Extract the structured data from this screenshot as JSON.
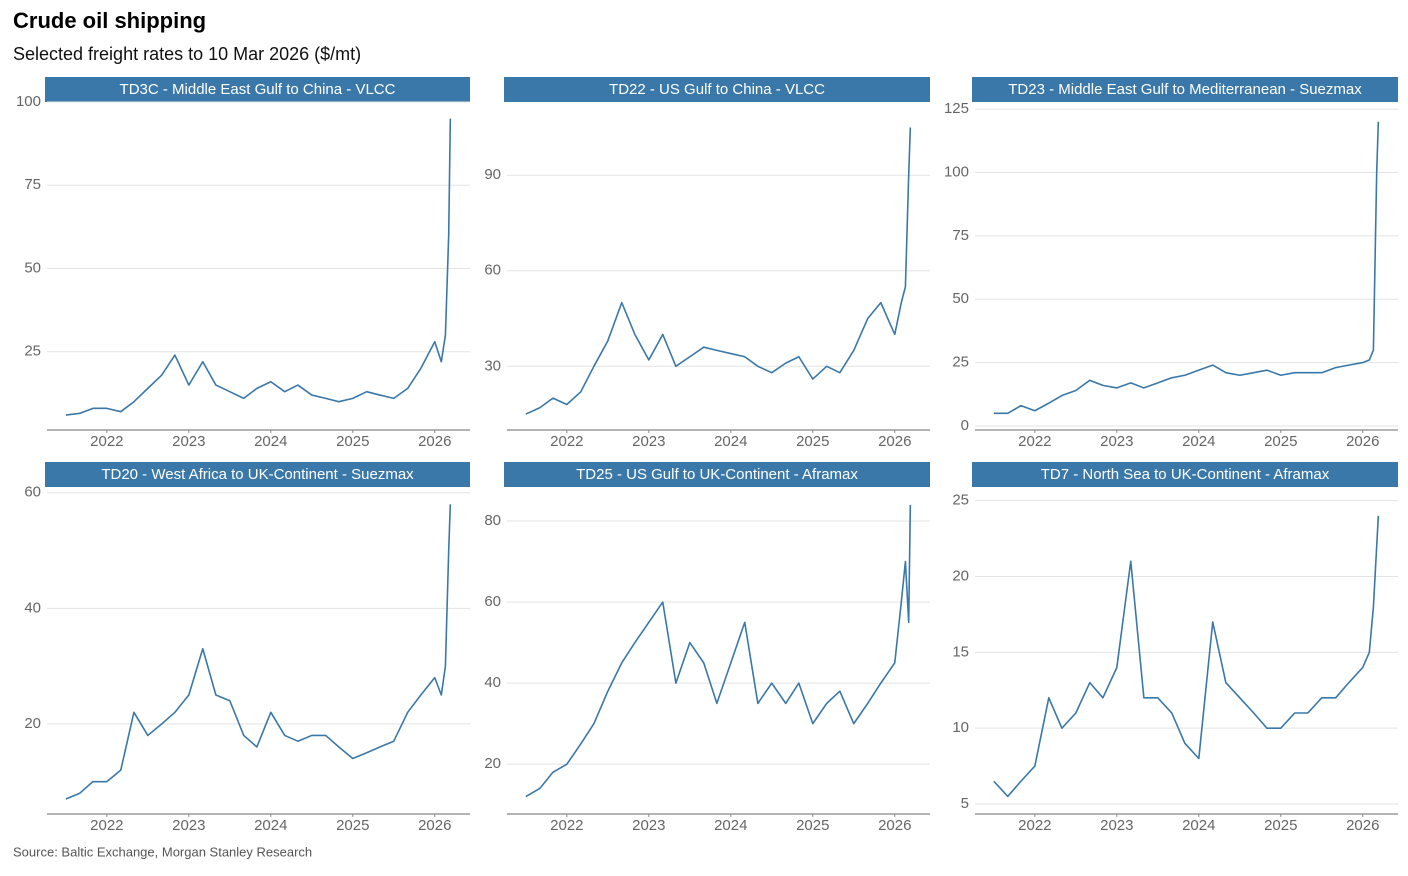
{
  "title": "Crude oil shipping",
  "subtitle": "Selected freight rates to 10 Mar 2026 ($/mt)",
  "source": "Source: Baltic Exchange, Morgan Stanley Research",
  "chart_data": [
    {
      "type": "line",
      "title": "TD3C - Middle East Gulf to China - VLCC",
      "color": "#3a78a9",
      "grid": true,
      "x": [
        2021.5,
        2021.67,
        2021.83,
        2022,
        2022.17,
        2022.33,
        2022.5,
        2022.67,
        2022.83,
        2023,
        2023.17,
        2023.33,
        2023.5,
        2023.67,
        2023.83,
        2024,
        2024.17,
        2024.33,
        2024.5,
        2024.67,
        2024.83,
        2025,
        2025.17,
        2025.33,
        2025.5,
        2025.67,
        2025.83,
        2026,
        2026.08,
        2026.13,
        2026.17,
        2026.19
      ],
      "values": [
        6,
        6.5,
        8,
        8,
        7,
        10,
        14,
        18,
        24,
        15,
        22,
        15,
        13,
        11,
        14,
        16,
        13,
        15,
        12,
        11,
        10,
        11,
        13,
        12,
        11,
        14,
        20,
        28,
        22,
        30,
        60,
        95
      ],
      "xlim": [
        2021.27,
        2026.43
      ],
      "xticks": [
        2022,
        2023,
        2024,
        2025,
        2026
      ],
      "ylim": [
        1.5,
        100
      ],
      "yticks": [
        25,
        50,
        75,
        100
      ]
    },
    {
      "type": "line",
      "title": "TD22 - US Gulf to China - VLCC",
      "color": "#3a78a9",
      "grid": true,
      "x": [
        2021.5,
        2021.67,
        2021.83,
        2022,
        2022.17,
        2022.33,
        2022.5,
        2022.67,
        2022.83,
        2023,
        2023.17,
        2023.33,
        2023.5,
        2023.67,
        2023.83,
        2024,
        2024.17,
        2024.33,
        2024.5,
        2024.67,
        2024.83,
        2025,
        2025.17,
        2025.33,
        2025.5,
        2025.67,
        2025.83,
        2026,
        2026.08,
        2026.13,
        2026.17,
        2026.19
      ],
      "values": [
        15,
        17,
        20,
        18,
        22,
        30,
        38,
        50,
        40,
        32,
        40,
        30,
        33,
        36,
        35,
        34,
        33,
        30,
        28,
        31,
        33,
        26,
        30,
        28,
        35,
        45,
        50,
        40,
        50,
        55,
        90,
        105
      ],
      "xlim": [
        2021.27,
        2026.43
      ],
      "xticks": [
        2022,
        2023,
        2024,
        2025,
        2026
      ],
      "ylim": [
        10,
        113
      ],
      "yticks": [
        30,
        60,
        90
      ]
    },
    {
      "type": "line",
      "title": "TD23 - Middle East Gulf to Mediterranean - Suezmax",
      "color": "#3a78a9",
      "grid": true,
      "x": [
        2021.5,
        2021.67,
        2021.83,
        2022,
        2022.17,
        2022.33,
        2022.5,
        2022.67,
        2022.83,
        2023,
        2023.17,
        2023.33,
        2023.5,
        2023.67,
        2023.83,
        2024,
        2024.17,
        2024.33,
        2024.5,
        2024.67,
        2024.83,
        2025,
        2025.17,
        2025.33,
        2025.5,
        2025.67,
        2025.83,
        2026,
        2026.08,
        2026.13,
        2026.17,
        2026.19
      ],
      "values": [
        5,
        5,
        8,
        6,
        9,
        12,
        14,
        18,
        16,
        15,
        17,
        15,
        17,
        19,
        20,
        22,
        24,
        21,
        20,
        21,
        22,
        20,
        21,
        21,
        21,
        23,
        24,
        25,
        26,
        30,
        100,
        120
      ],
      "xlim": [
        2021.27,
        2026.43
      ],
      "xticks": [
        2022,
        2023,
        2024,
        2025,
        2026
      ],
      "ylim": [
        -1.6,
        127.8
      ],
      "yticks": [
        0,
        25,
        50,
        75,
        100,
        125
      ]
    },
    {
      "type": "line",
      "title": "TD20 - West Africa to UK-Continent - Suezmax",
      "color": "#3a78a9",
      "grid": true,
      "x": [
        2021.5,
        2021.67,
        2021.83,
        2022,
        2022.17,
        2022.33,
        2022.5,
        2022.67,
        2022.83,
        2023,
        2023.17,
        2023.33,
        2023.5,
        2023.67,
        2023.83,
        2024,
        2024.17,
        2024.33,
        2024.5,
        2024.67,
        2024.83,
        2025,
        2025.17,
        2025.33,
        2025.5,
        2025.67,
        2025.83,
        2026,
        2026.08,
        2026.13,
        2026.17,
        2026.19
      ],
      "values": [
        7,
        8,
        10,
        10,
        12,
        22,
        18,
        20,
        22,
        25,
        33,
        25,
        24,
        18,
        16,
        22,
        18,
        17,
        18,
        18,
        16,
        14,
        15,
        16,
        17,
        22,
        25,
        28,
        25,
        30,
        50,
        58
      ],
      "xlim": [
        2021.27,
        2026.43
      ],
      "xticks": [
        2022,
        2023,
        2024,
        2025,
        2026
      ],
      "ylim": [
        4.4,
        61
      ],
      "yticks": [
        20,
        40,
        60
      ]
    },
    {
      "type": "line",
      "title": "TD25 - US Gulf to UK-Continent - Aframax",
      "color": "#3a78a9",
      "grid": true,
      "x": [
        2021.5,
        2021.67,
        2021.83,
        2022,
        2022.17,
        2022.33,
        2022.5,
        2022.67,
        2022.83,
        2023,
        2023.17,
        2023.33,
        2023.5,
        2023.67,
        2023.83,
        2024,
        2024.17,
        2024.33,
        2024.5,
        2024.67,
        2024.83,
        2025,
        2025.17,
        2025.33,
        2025.5,
        2025.67,
        2025.83,
        2026,
        2026.08,
        2026.13,
        2026.17,
        2026.19
      ],
      "values": [
        12,
        14,
        18,
        20,
        25,
        30,
        38,
        45,
        50,
        55,
        60,
        40,
        50,
        45,
        35,
        45,
        55,
        35,
        40,
        35,
        40,
        30,
        35,
        38,
        30,
        35,
        40,
        45,
        60,
        70,
        55,
        84
      ],
      "xlim": [
        2021.27,
        2026.43
      ],
      "xticks": [
        2022,
        2023,
        2024,
        2025,
        2026
      ],
      "ylim": [
        7.7,
        88.4
      ],
      "yticks": [
        20,
        40,
        60,
        80
      ]
    },
    {
      "type": "line",
      "title": "TD7 - North Sea to UK-Continent - Aframax",
      "color": "#3a78a9",
      "grid": true,
      "x": [
        2021.5,
        2021.67,
        2021.83,
        2022,
        2022.17,
        2022.33,
        2022.5,
        2022.67,
        2022.83,
        2023,
        2023.17,
        2023.33,
        2023.5,
        2023.67,
        2023.83,
        2024,
        2024.17,
        2024.33,
        2024.5,
        2024.67,
        2024.83,
        2025,
        2025.17,
        2025.33,
        2025.5,
        2025.67,
        2025.83,
        2026,
        2026.08,
        2026.13,
        2026.17,
        2026.19
      ],
      "values": [
        6.5,
        5.5,
        6.5,
        7.5,
        12,
        10,
        11,
        13,
        12,
        14,
        21,
        12,
        12,
        11,
        9,
        8,
        17,
        13,
        12,
        11,
        10,
        10,
        11,
        11,
        12,
        12,
        13,
        14,
        15,
        18,
        22,
        24
      ],
      "xlim": [
        2021.27,
        2026.43
      ],
      "xticks": [
        2022,
        2023,
        2024,
        2025,
        2026
      ],
      "ylim": [
        4.34,
        25.9
      ],
      "yticks": [
        5,
        10,
        15,
        20,
        25
      ]
    }
  ]
}
